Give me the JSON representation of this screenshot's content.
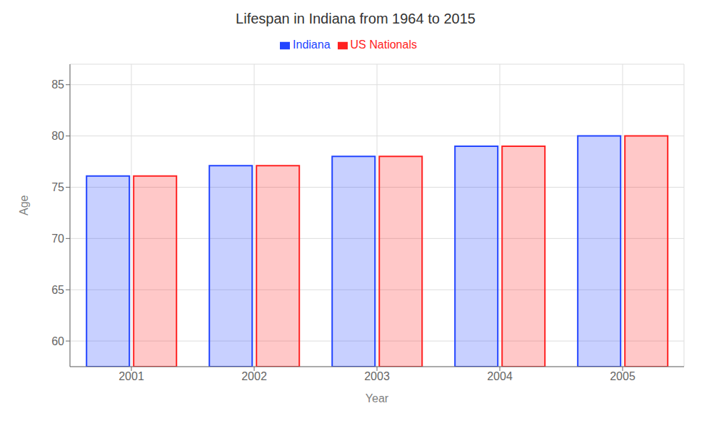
{
  "chart_data": {
    "type": "bar",
    "title": "Lifespan in Indiana from 1964 to 2015",
    "x_label": "Year",
    "y_label": "Age",
    "categories": [
      "2001",
      "2002",
      "2003",
      "2004",
      "2005"
    ],
    "series": [
      {
        "name": "Indiana",
        "color": "#2244ff",
        "values": [
          76.1,
          77.1,
          78.0,
          79.0,
          80.0
        ]
      },
      {
        "name": "US Nationals",
        "color": "#ff2222",
        "values": [
          76.1,
          77.1,
          78.0,
          79.0,
          80.0
        ]
      }
    ],
    "ylim": [
      57.5,
      87
    ],
    "yticks": [
      60,
      65,
      70,
      75,
      80,
      85
    ],
    "grid": true,
    "legend": "top"
  }
}
